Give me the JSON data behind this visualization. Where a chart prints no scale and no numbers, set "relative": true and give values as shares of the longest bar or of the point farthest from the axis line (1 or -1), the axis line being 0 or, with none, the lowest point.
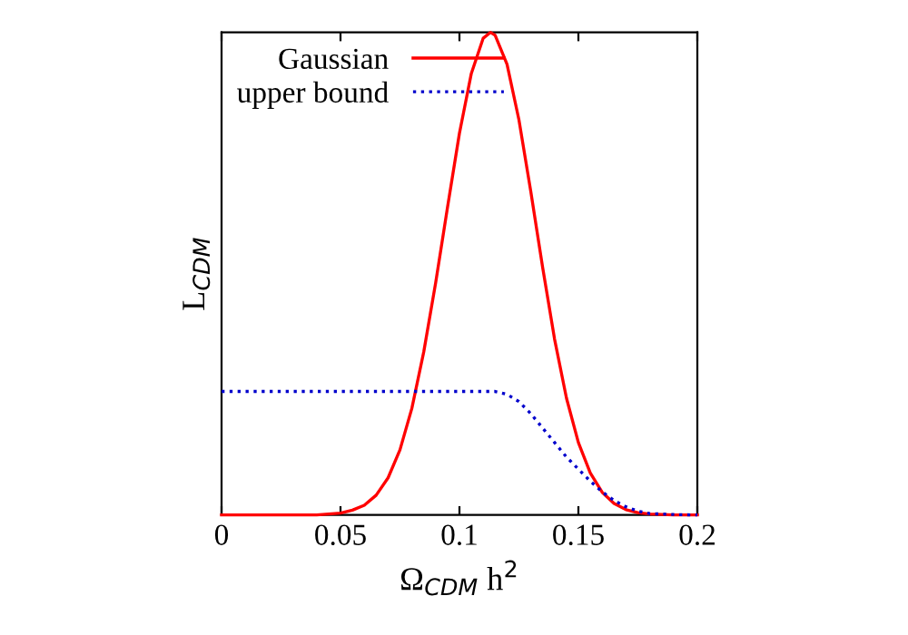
{
  "chart_data": {
    "type": "line",
    "relative": true,
    "xlabel": "Ω$_{CDM}$ h$^{2}$",
    "ylabel": "L$_{CDM}$",
    "xlim": [
      0,
      0.2
    ],
    "xticks": [
      0,
      0.05,
      0.1,
      0.15,
      0.2
    ],
    "legend": "top left",
    "grid": false,
    "tick_labels": "x",
    "series": [
      {
        "name": "Gaussian",
        "color": "#ff0000",
        "line_style": "solid",
        "x": [
          0,
          0.01,
          0.02,
          0.03,
          0.04,
          0.045,
          0.05,
          0.055,
          0.06,
          0.065,
          0.07,
          0.075,
          0.08,
          0.085,
          0.09,
          0.095,
          0.1,
          0.105,
          0.11,
          0.113,
          0.115,
          0.12,
          0.125,
          0.13,
          0.135,
          0.14,
          0.145,
          0.15,
          0.155,
          0.16,
          0.165,
          0.17,
          0.175,
          0.18,
          0.185,
          0.19,
          0.2
        ],
        "values": [
          0,
          0,
          0,
          0,
          0,
          0.002,
          0.004,
          0.01,
          0.02,
          0.041,
          0.077,
          0.135,
          0.221,
          0.338,
          0.481,
          0.638,
          0.791,
          0.915,
          0.988,
          1,
          0.994,
          0.934,
          0.819,
          0.67,
          0.512,
          0.364,
          0.242,
          0.15,
          0.087,
          0.047,
          0.024,
          0.011,
          0.005,
          0.002,
          0.001,
          0,
          0
        ]
      },
      {
        "name": "upper bound",
        "color": "#0000cc",
        "line_style": "dotted",
        "x": [
          0,
          0.05,
          0.1,
          0.115,
          0.12,
          0.125,
          0.13,
          0.135,
          0.14,
          0.145,
          0.15,
          0.155,
          0.16,
          0.165,
          0.17,
          0.175,
          0.18,
          0.19,
          0.2
        ],
        "values": [
          0.256,
          0.256,
          0.256,
          0.256,
          0.25,
          0.235,
          0.21,
          0.18,
          0.15,
          0.12,
          0.095,
          0.07,
          0.048,
          0.03,
          0.017,
          0.008,
          0.003,
          0.001,
          0
        ]
      }
    ]
  }
}
